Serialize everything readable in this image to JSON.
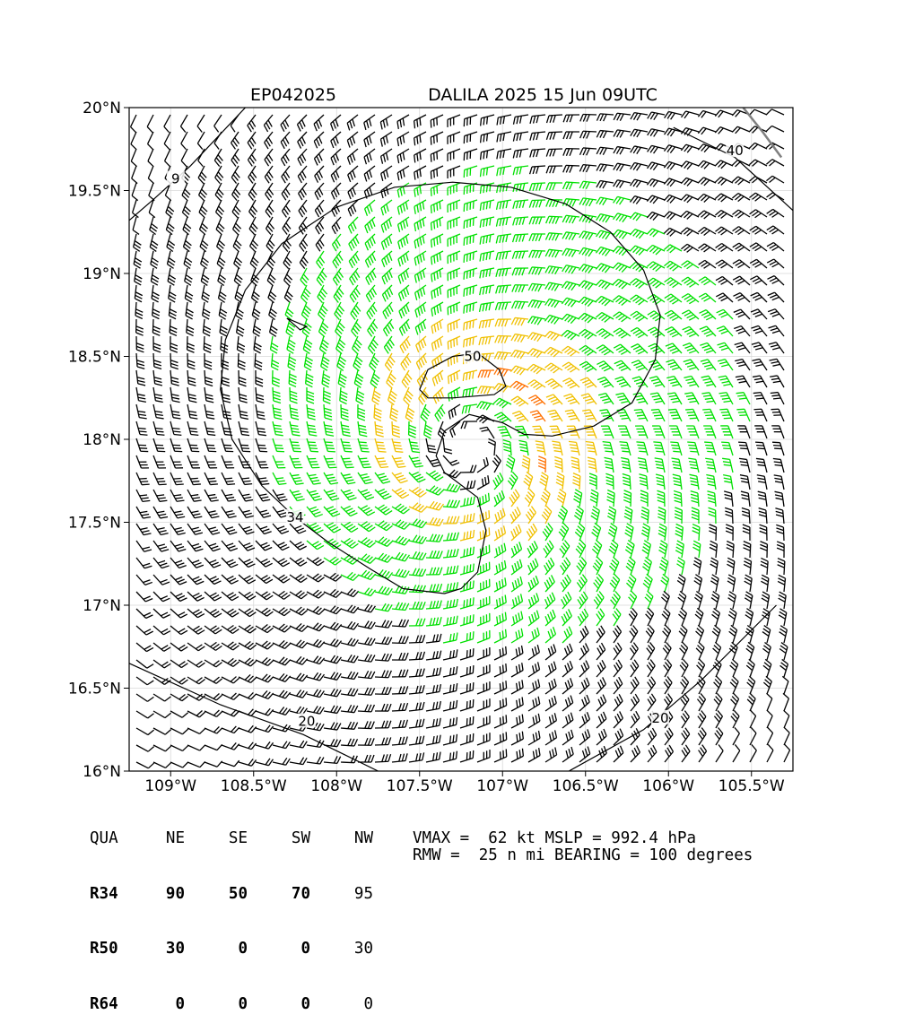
{
  "chart_data": {
    "type": "wind-barb-map",
    "title_left": "EP042025",
    "title_right": "DALILA 2025 15 Jun 09UTC",
    "lon_range": [
      -109.25,
      -105.25
    ],
    "lat_range": [
      16.0,
      20.0
    ],
    "x_ticks": [
      {
        "value": -109.0,
        "label": "109°W"
      },
      {
        "value": -108.5,
        "label": "108.5°W"
      },
      {
        "value": -108.0,
        "label": "108°W"
      },
      {
        "value": -107.5,
        "label": "107.5°W"
      },
      {
        "value": -107.0,
        "label": "107°W"
      },
      {
        "value": -106.5,
        "label": "106.5°W"
      },
      {
        "value": -106.0,
        "label": "106°W"
      },
      {
        "value": -105.5,
        "label": "105.5°W"
      }
    ],
    "y_ticks": [
      {
        "value": 16.0,
        "label": "16°N"
      },
      {
        "value": 16.5,
        "label": "16.5°N"
      },
      {
        "value": 17.0,
        "label": "17°N"
      },
      {
        "value": 17.5,
        "label": "17.5°N"
      },
      {
        "value": 18.0,
        "label": "18°N"
      },
      {
        "value": 18.5,
        "label": "18.5°N"
      },
      {
        "value": 19.0,
        "label": "19°N"
      },
      {
        "value": 19.5,
        "label": "19.5°N"
      },
      {
        "value": 20.0,
        "label": "20°N"
      }
    ],
    "grid": true,
    "storm_center": {
      "lon": -107.2,
      "lat": 17.97
    },
    "vmax_kt": 62,
    "rmw_nmi": 25,
    "contour_labels": [
      {
        "text": "34",
        "lon": -108.25,
        "lat": 17.53
      },
      {
        "text": "50",
        "lon": -107.18,
        "lat": 18.5
      },
      {
        "text": "20",
        "lon": -108.18,
        "lat": 16.3
      },
      {
        "text": "20",
        "lon": -106.05,
        "lat": 16.32
      },
      {
        "text": "40",
        "lon": -105.6,
        "lat": 19.74
      },
      {
        "text": "9",
        "lon": -108.97,
        "lat": 19.57
      }
    ],
    "wind_speed_colors": {
      "below_34": "#000000",
      "34_to_50": "#00e000",
      "50_to_64": "#f0c000",
      "above_64": "#ff7000"
    },
    "contour_34kt": [
      [
        -107.35,
        17.07
      ],
      [
        -107.6,
        17.1
      ],
      [
        -107.8,
        17.22
      ],
      [
        -108.05,
        17.38
      ],
      [
        -108.25,
        17.53
      ],
      [
        -108.45,
        17.72
      ],
      [
        -108.63,
        18.0
      ],
      [
        -108.7,
        18.3
      ],
      [
        -108.67,
        18.6
      ],
      [
        -108.55,
        18.9
      ],
      [
        -108.33,
        19.18
      ],
      [
        -108.0,
        19.4
      ],
      [
        -107.65,
        19.52
      ],
      [
        -107.3,
        19.55
      ],
      [
        -106.95,
        19.52
      ],
      [
        -106.62,
        19.42
      ],
      [
        -106.35,
        19.25
      ],
      [
        -106.15,
        19.02
      ],
      [
        -106.05,
        18.75
      ],
      [
        -106.08,
        18.48
      ],
      [
        -106.22,
        18.22
      ],
      [
        -106.45,
        18.08
      ],
      [
        -106.7,
        18.02
      ],
      [
        -106.87,
        18.03
      ],
      [
        -107.0,
        18.1
      ],
      [
        -107.2,
        18.15
      ],
      [
        -107.35,
        18.05
      ],
      [
        -107.4,
        17.9
      ],
      [
        -107.35,
        17.8
      ],
      [
        -107.15,
        17.65
      ],
      [
        -107.1,
        17.45
      ],
      [
        -107.15,
        17.2
      ],
      [
        -107.25,
        17.1
      ],
      [
        -107.35,
        17.07
      ]
    ],
    "contour_50kt": [
      [
        -107.5,
        18.3
      ],
      [
        -107.45,
        18.42
      ],
      [
        -107.3,
        18.5
      ],
      [
        -107.15,
        18.52
      ],
      [
        -107.02,
        18.42
      ],
      [
        -106.98,
        18.32
      ],
      [
        -107.05,
        18.27
      ],
      [
        -107.3,
        18.25
      ],
      [
        -107.45,
        18.25
      ],
      [
        -107.5,
        18.3
      ]
    ],
    "contour_20kt_sw": [
      [
        -109.25,
        16.65
      ],
      [
        -108.7,
        16.4
      ],
      [
        -108.2,
        16.22
      ],
      [
        -107.75,
        16.0
      ]
    ],
    "contour_20kt_se": [
      [
        -106.6,
        16.0
      ],
      [
        -106.15,
        16.25
      ],
      [
        -105.8,
        16.55
      ],
      [
        -105.35,
        17.0
      ]
    ],
    "contour_40kt_ne": [
      [
        -105.97,
        19.88
      ],
      [
        -105.6,
        19.7
      ],
      [
        -105.25,
        19.38
      ]
    ],
    "contour_9kt_nw": [
      [
        -109.25,
        19.32
      ],
      [
        -109.1,
        19.45
      ],
      [
        -108.88,
        19.65
      ],
      [
        -108.55,
        20.0
      ]
    ],
    "contour_small_loop": [
      [
        -108.3,
        18.73
      ],
      [
        -108.18,
        18.68
      ],
      [
        -108.22,
        18.66
      ],
      [
        -108.3,
        18.73
      ]
    ],
    "gray_track": [
      [
        -105.55,
        20.0
      ],
      [
        -105.43,
        19.85
      ],
      [
        -105.32,
        19.7
      ]
    ]
  },
  "table": {
    "header": [
      "QUA",
      "NE",
      "SE",
      "SW",
      "NW"
    ],
    "rows": [
      {
        "label": "R34",
        "values": [
          "90",
          "50",
          "70",
          "95"
        ]
      },
      {
        "label": "R50",
        "values": [
          "30",
          "0",
          "0",
          "30"
        ]
      },
      {
        "label": "R64",
        "values": [
          "0",
          "0",
          "0",
          "0"
        ]
      }
    ]
  },
  "stats": {
    "line1": "VMAX =  62 kt MSLP = 992.4 hPa",
    "line2": "RMW =  25 n mi BEARING = 100 degrees"
  }
}
